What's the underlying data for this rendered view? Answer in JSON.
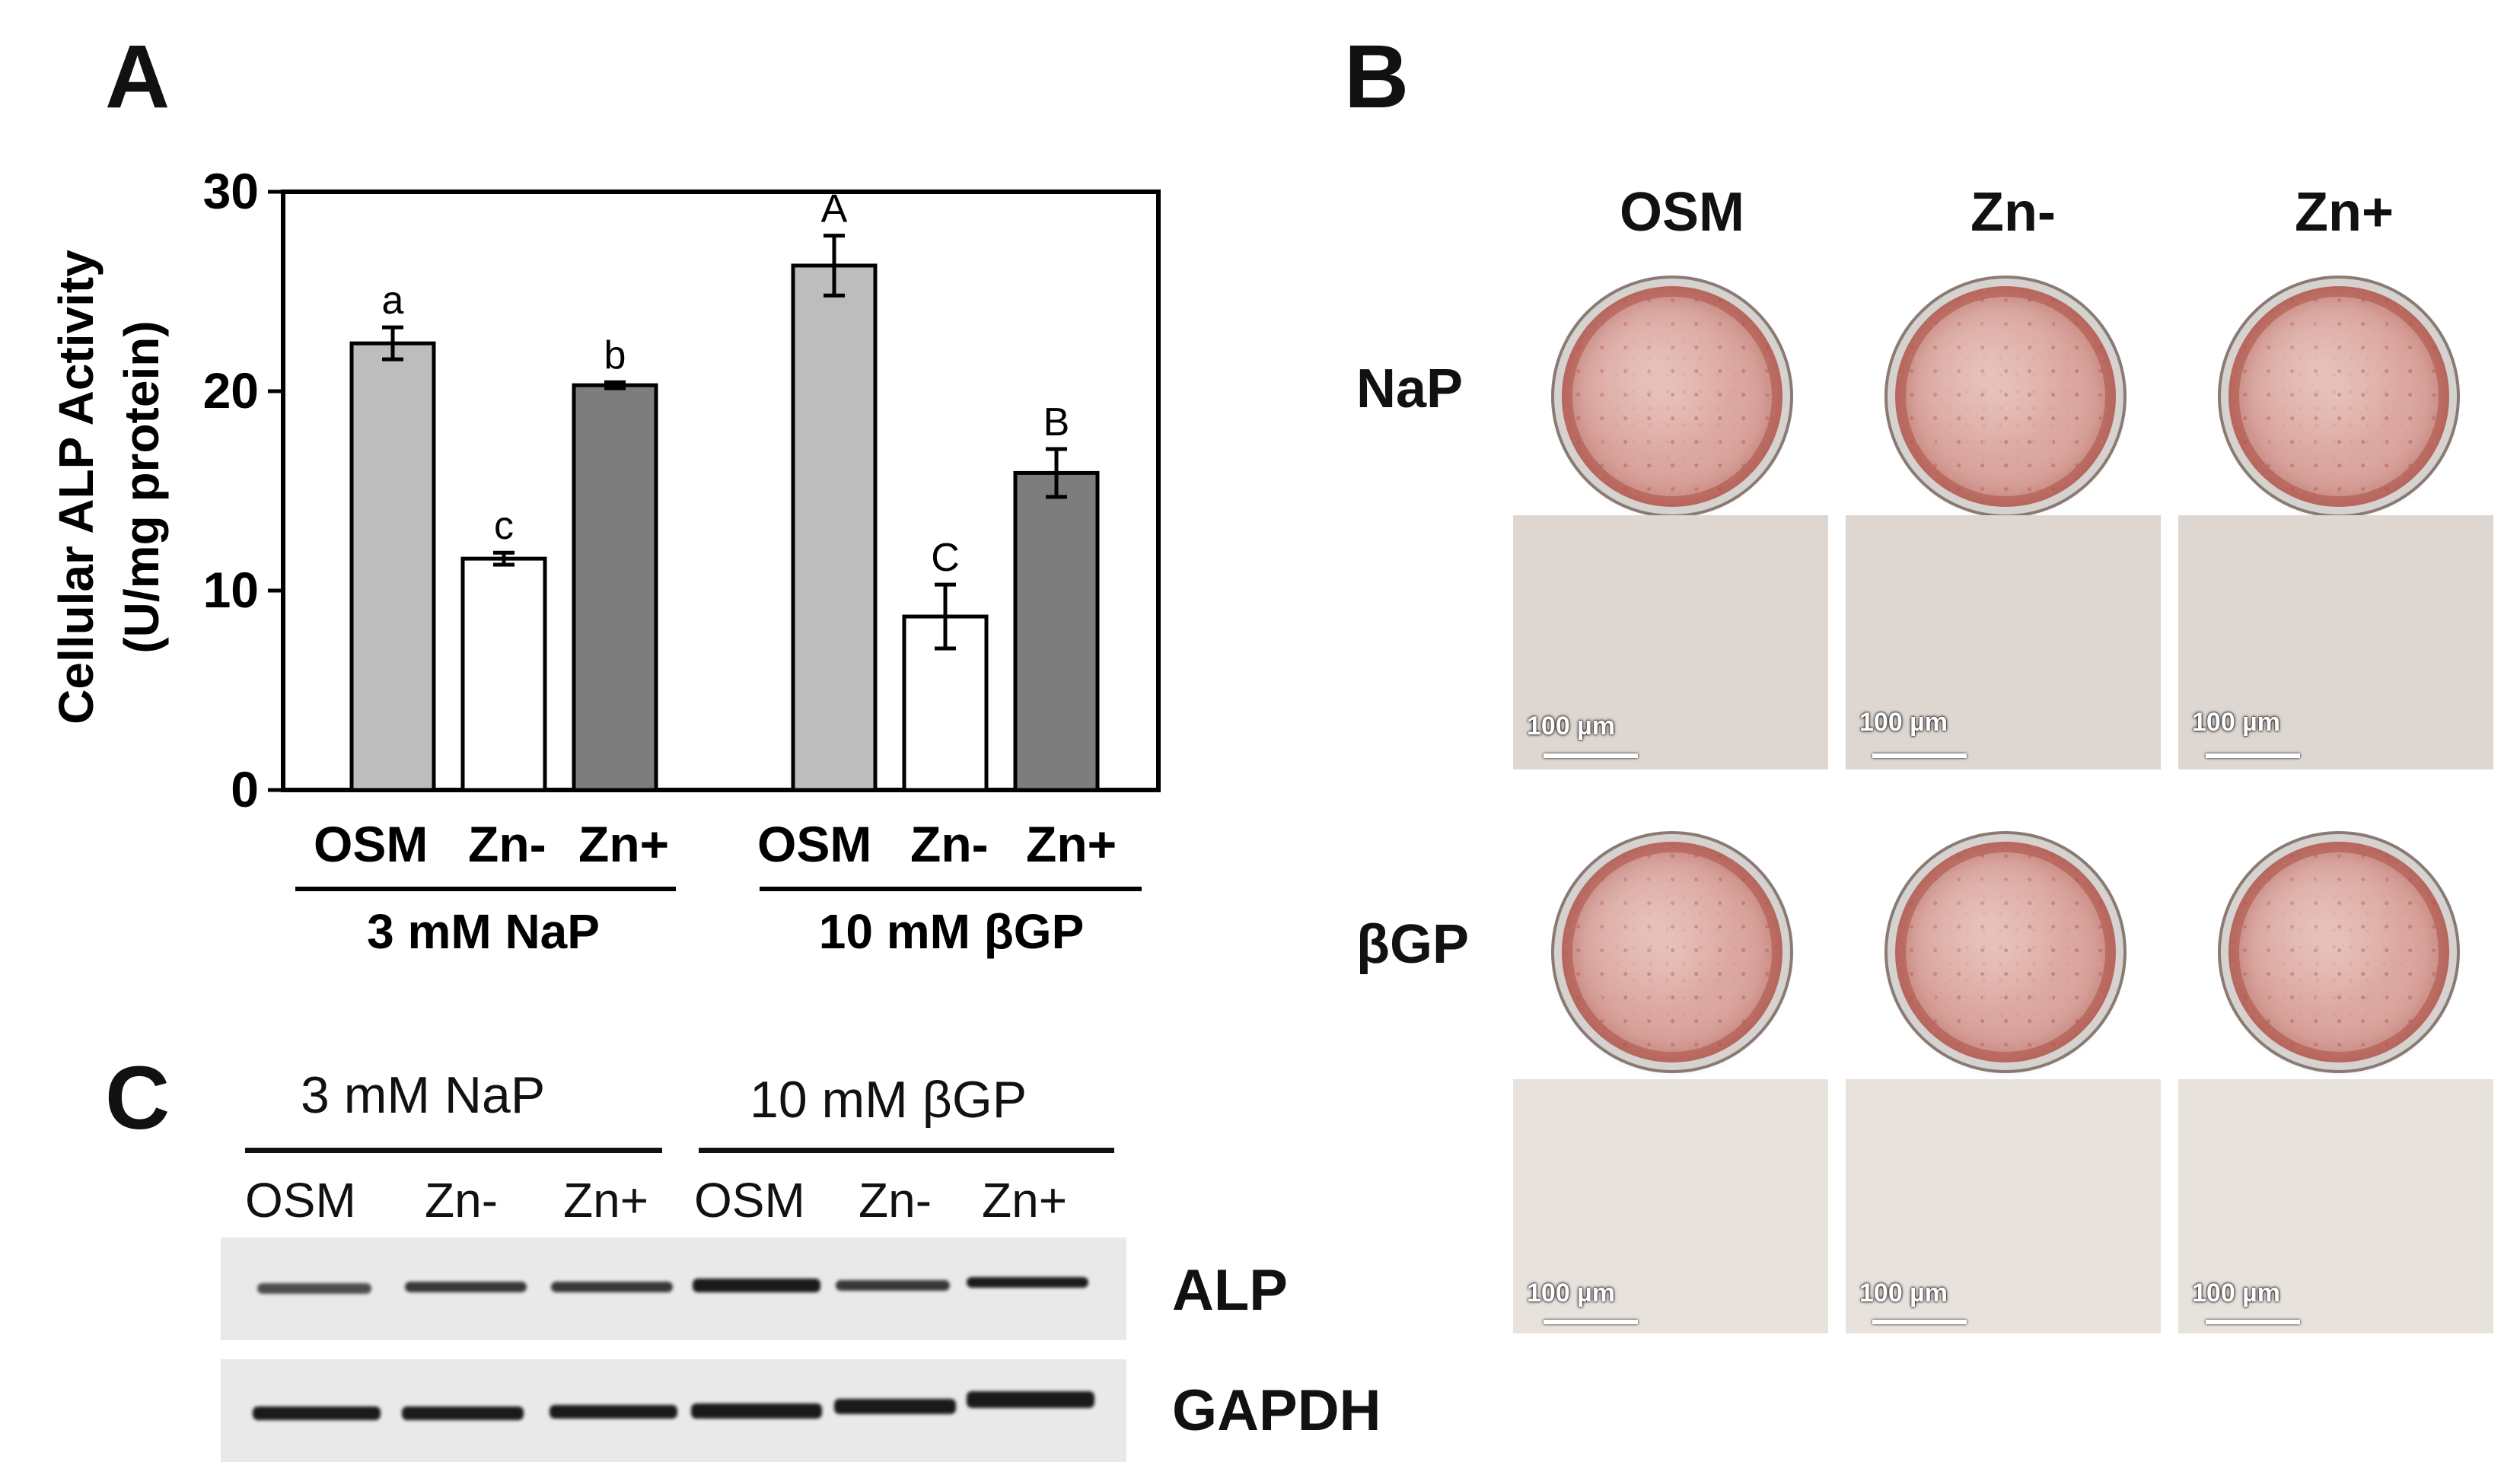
{
  "panels": {
    "a_label": "A",
    "b_label": "B",
    "c_label": "C"
  },
  "chart_data": {
    "type": "bar",
    "ylabel_line1": "Cellular ALP Activity",
    "ylabel_line2": "(U/mg protein)",
    "ylim": [
      0,
      30
    ],
    "yticks": [
      "0",
      "10",
      "20",
      "30"
    ],
    "groups": [
      {
        "name": "3 mM NaP",
        "bars": [
          {
            "category": "OSM",
            "value": 22.4,
            "error": 0.8,
            "letter": "a",
            "color": "#bdbdbd"
          },
          {
            "category": "Zn-",
            "value": 11.6,
            "error": 0.3,
            "letter": "c",
            "color": "#ffffff"
          },
          {
            "category": "Zn+",
            "value": 20.3,
            "error": 0.15,
            "letter": "b",
            "color": "#7d7d7d"
          }
        ]
      },
      {
        "name": "10 mM βGP",
        "bars": [
          {
            "category": "OSM",
            "value": 26.3,
            "error": 1.5,
            "letter": "A",
            "color": "#bdbdbd"
          },
          {
            "category": "Zn-",
            "value": 8.7,
            "error": 1.6,
            "letter": "C",
            "color": "#ffffff"
          },
          {
            "category": "Zn+",
            "value": 15.9,
            "error": 1.2,
            "letter": "B",
            "color": "#7d7d7d"
          }
        ]
      }
    ]
  },
  "panel_b": {
    "columns": [
      "OSM",
      "Zn-",
      "Zn+"
    ],
    "rows": [
      "NaP",
      "βGP"
    ],
    "scale_label": "100 µm"
  },
  "panel_c": {
    "groups": [
      "3 mM NaP",
      "10 mM βGP"
    ],
    "lanes": [
      "OSM",
      "Zn-",
      "Zn+",
      "OSM",
      "Zn-",
      "Zn+"
    ],
    "blots": [
      "ALP",
      "GAPDH"
    ]
  }
}
